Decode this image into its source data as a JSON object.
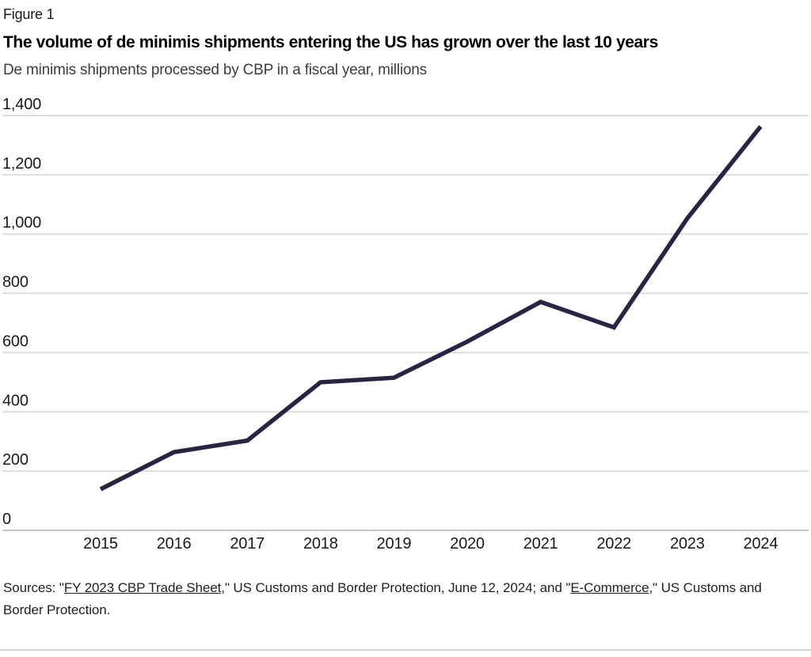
{
  "figure_label": "Figure 1",
  "title": "The volume of de minimis shipments entering the US has grown over the last 10 years",
  "subtitle": "De minimis shipments processed by CBP in a fiscal year, millions",
  "chart_data": {
    "type": "line",
    "title": "The volume of de minimis shipments entering the US has grown over the last 10 years",
    "subtitle": "De minimis shipments processed by CBP in a fiscal year, millions",
    "x": [
      2015,
      2016,
      2017,
      2018,
      2019,
      2020,
      2021,
      2022,
      2023,
      2024
    ],
    "values": [
      139,
      264,
      303,
      500,
      515,
      637,
      771,
      685,
      1053,
      1363
    ],
    "series_name": "De minimis shipments processed by CBP (millions)",
    "xlabel": "",
    "ylabel": "",
    "ylim": [
      0,
      1400
    ],
    "grid": true,
    "legend": "none",
    "yticks": [
      {
        "value": 0,
        "label": "0"
      },
      {
        "value": 200,
        "label": "200"
      },
      {
        "value": 400,
        "label": "400"
      },
      {
        "value": 600,
        "label": "600"
      },
      {
        "value": 800,
        "label": "800"
      },
      {
        "value": 1000,
        "label": "1,000"
      },
      {
        "value": 1200,
        "label": "1,200"
      },
      {
        "value": 1400,
        "label": "1,400"
      }
    ],
    "line_color": "#2A2342",
    "grid_color": "#DBDBDB",
    "axis_color": "#C6C6C6"
  },
  "sources": {
    "prefix": "Sources: \"",
    "link1": "FY 2023 CBP Trade Sheet",
    "middle": ",\" US Customs and Border Protection, June 12, 2024; and \"",
    "link2": "E-Commerce",
    "suffix": ",\" US Customs and Border Protection."
  }
}
